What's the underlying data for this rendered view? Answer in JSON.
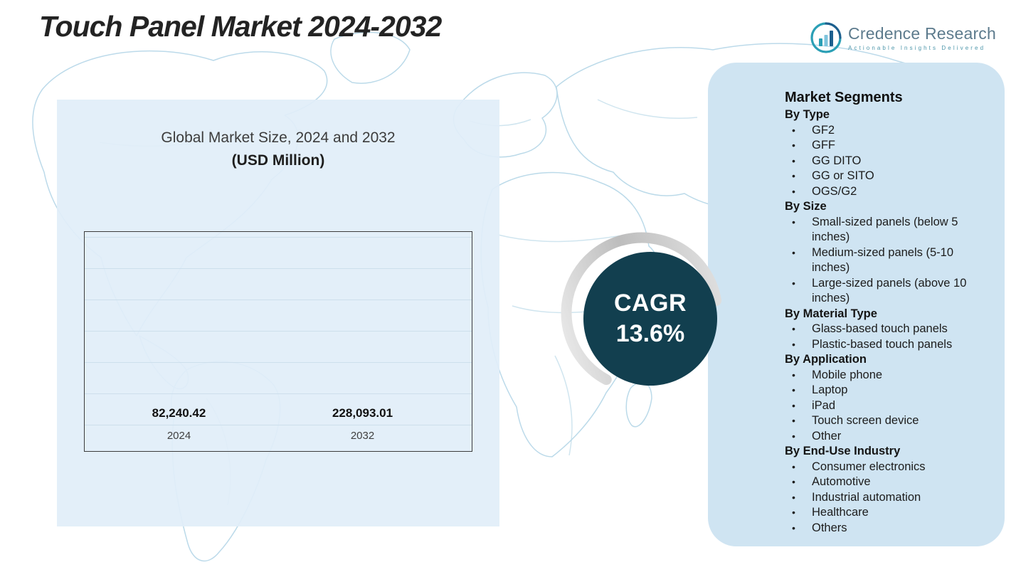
{
  "header": {
    "title": "Touch Panel Market 2024-2032"
  },
  "logo": {
    "name": "Credence Research",
    "tagline": "Actionable Insights Delivered"
  },
  "chart_data": {
    "type": "bar",
    "title": "Global Market Size, 2024 and 2032",
    "subtitle": "(USD Million)",
    "categories": [
      "2024",
      "2032"
    ],
    "values": [
      82240.42,
      228093.01
    ],
    "value_labels": [
      "82,240.42",
      "228,093.01"
    ],
    "bar_colors": [
      "#3aa2a0",
      "#1f7fb2"
    ],
    "ylabel": "USD Million",
    "xlabel": "",
    "ylim": [
      0,
      270000
    ],
    "grid": true,
    "legend": "none"
  },
  "cagr": {
    "label": "CAGR",
    "value": "13.6%"
  },
  "segments": {
    "heading": "Market Segments",
    "groups": [
      {
        "label": "By Type",
        "items": [
          "GF2",
          "GFF",
          "GG DITO",
          "GG or SITO",
          "OGS/G2"
        ]
      },
      {
        "label": "By Size",
        "items": [
          "Small-sized panels (below 5 inches)",
          "Medium-sized panels (5-10 inches)",
          "Large-sized panels (above 10 inches)"
        ]
      },
      {
        "label": "By Material Type",
        "items": [
          "Glass-based touch panels",
          "Plastic-based touch panels"
        ]
      },
      {
        "label": "By Application",
        "items": [
          "Mobile phone",
          "Laptop",
          "iPad",
          "Touch screen device",
          "Other"
        ]
      },
      {
        "label": "By End-Use Industry",
        "items": [
          "Consumer electronics",
          "Automotive",
          "Industrial automation",
          "Healthcare",
          "Others"
        ]
      }
    ]
  },
  "colors": {
    "cagr_circle": "#123f4f",
    "left_panel_bg": "#e1eef8",
    "right_panel_bg": "#cfe4f2",
    "map_stroke": "#b0d4e6",
    "bar_2024": "#3aa2a0",
    "bar_2032": "#1f7fb2",
    "title_text": "#232323"
  }
}
